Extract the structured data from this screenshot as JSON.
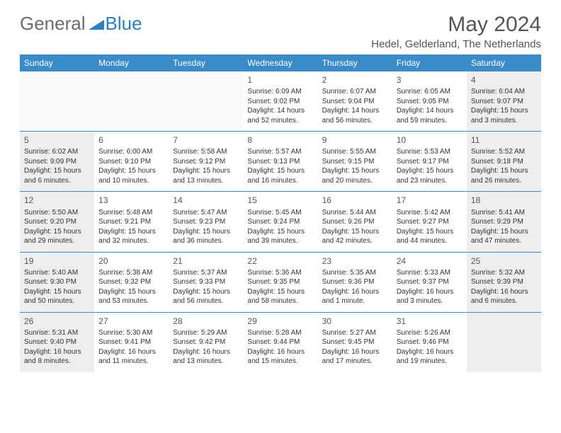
{
  "logo": {
    "general": "General",
    "blue": "Blue"
  },
  "title": "May 2024",
  "location": "Hedel, Gelderland, The Netherlands",
  "weekdays": [
    "Sunday",
    "Monday",
    "Tuesday",
    "Wednesday",
    "Thursday",
    "Friday",
    "Saturday"
  ],
  "header_bg": "#3b8bc9",
  "header_fg": "#ffffff",
  "divider_color": "#3b8bc9",
  "shaded_bg": "#eeeeee",
  "text_color": "#333333",
  "days": [
    [
      {
        "blank": true,
        "shaded": false
      },
      {
        "blank": true,
        "shaded": false
      },
      {
        "blank": true,
        "shaded": false
      },
      {
        "num": "1",
        "shaded": false,
        "sunrise": "Sunrise: 6:09 AM",
        "sunset": "Sunset: 9:02 PM",
        "daylight": "Daylight: 14 hours and 52 minutes."
      },
      {
        "num": "2",
        "shaded": false,
        "sunrise": "Sunrise: 6:07 AM",
        "sunset": "Sunset: 9:04 PM",
        "daylight": "Daylight: 14 hours and 56 minutes."
      },
      {
        "num": "3",
        "shaded": false,
        "sunrise": "Sunrise: 6:05 AM",
        "sunset": "Sunset: 9:05 PM",
        "daylight": "Daylight: 14 hours and 59 minutes."
      },
      {
        "num": "4",
        "shaded": true,
        "sunrise": "Sunrise: 6:04 AM",
        "sunset": "Sunset: 9:07 PM",
        "daylight": "Daylight: 15 hours and 3 minutes."
      }
    ],
    [
      {
        "num": "5",
        "shaded": true,
        "sunrise": "Sunrise: 6:02 AM",
        "sunset": "Sunset: 9:09 PM",
        "daylight": "Daylight: 15 hours and 6 minutes."
      },
      {
        "num": "6",
        "shaded": false,
        "sunrise": "Sunrise: 6:00 AM",
        "sunset": "Sunset: 9:10 PM",
        "daylight": "Daylight: 15 hours and 10 minutes."
      },
      {
        "num": "7",
        "shaded": false,
        "sunrise": "Sunrise: 5:58 AM",
        "sunset": "Sunset: 9:12 PM",
        "daylight": "Daylight: 15 hours and 13 minutes."
      },
      {
        "num": "8",
        "shaded": false,
        "sunrise": "Sunrise: 5:57 AM",
        "sunset": "Sunset: 9:13 PM",
        "daylight": "Daylight: 15 hours and 16 minutes."
      },
      {
        "num": "9",
        "shaded": false,
        "sunrise": "Sunrise: 5:55 AM",
        "sunset": "Sunset: 9:15 PM",
        "daylight": "Daylight: 15 hours and 20 minutes."
      },
      {
        "num": "10",
        "shaded": false,
        "sunrise": "Sunrise: 5:53 AM",
        "sunset": "Sunset: 9:17 PM",
        "daylight": "Daylight: 15 hours and 23 minutes."
      },
      {
        "num": "11",
        "shaded": true,
        "sunrise": "Sunrise: 5:52 AM",
        "sunset": "Sunset: 9:18 PM",
        "daylight": "Daylight: 15 hours and 26 minutes."
      }
    ],
    [
      {
        "num": "12",
        "shaded": true,
        "sunrise": "Sunrise: 5:50 AM",
        "sunset": "Sunset: 9:20 PM",
        "daylight": "Daylight: 15 hours and 29 minutes."
      },
      {
        "num": "13",
        "shaded": false,
        "sunrise": "Sunrise: 5:48 AM",
        "sunset": "Sunset: 9:21 PM",
        "daylight": "Daylight: 15 hours and 32 minutes."
      },
      {
        "num": "14",
        "shaded": false,
        "sunrise": "Sunrise: 5:47 AM",
        "sunset": "Sunset: 9:23 PM",
        "daylight": "Daylight: 15 hours and 36 minutes."
      },
      {
        "num": "15",
        "shaded": false,
        "sunrise": "Sunrise: 5:45 AM",
        "sunset": "Sunset: 9:24 PM",
        "daylight": "Daylight: 15 hours and 39 minutes."
      },
      {
        "num": "16",
        "shaded": false,
        "sunrise": "Sunrise: 5:44 AM",
        "sunset": "Sunset: 9:26 PM",
        "daylight": "Daylight: 15 hours and 42 minutes."
      },
      {
        "num": "17",
        "shaded": false,
        "sunrise": "Sunrise: 5:42 AM",
        "sunset": "Sunset: 9:27 PM",
        "daylight": "Daylight: 15 hours and 44 minutes."
      },
      {
        "num": "18",
        "shaded": true,
        "sunrise": "Sunrise: 5:41 AM",
        "sunset": "Sunset: 9:29 PM",
        "daylight": "Daylight: 15 hours and 47 minutes."
      }
    ],
    [
      {
        "num": "19",
        "shaded": true,
        "sunrise": "Sunrise: 5:40 AM",
        "sunset": "Sunset: 9:30 PM",
        "daylight": "Daylight: 15 hours and 50 minutes."
      },
      {
        "num": "20",
        "shaded": false,
        "sunrise": "Sunrise: 5:38 AM",
        "sunset": "Sunset: 9:32 PM",
        "daylight": "Daylight: 15 hours and 53 minutes."
      },
      {
        "num": "21",
        "shaded": false,
        "sunrise": "Sunrise: 5:37 AM",
        "sunset": "Sunset: 9:33 PM",
        "daylight": "Daylight: 15 hours and 56 minutes."
      },
      {
        "num": "22",
        "shaded": false,
        "sunrise": "Sunrise: 5:36 AM",
        "sunset": "Sunset: 9:35 PM",
        "daylight": "Daylight: 15 hours and 58 minutes."
      },
      {
        "num": "23",
        "shaded": false,
        "sunrise": "Sunrise: 5:35 AM",
        "sunset": "Sunset: 9:36 PM",
        "daylight": "Daylight: 16 hours and 1 minute."
      },
      {
        "num": "24",
        "shaded": false,
        "sunrise": "Sunrise: 5:33 AM",
        "sunset": "Sunset: 9:37 PM",
        "daylight": "Daylight: 16 hours and 3 minutes."
      },
      {
        "num": "25",
        "shaded": true,
        "sunrise": "Sunrise: 5:32 AM",
        "sunset": "Sunset: 9:39 PM",
        "daylight": "Daylight: 16 hours and 6 minutes."
      }
    ],
    [
      {
        "num": "26",
        "shaded": true,
        "sunrise": "Sunrise: 5:31 AM",
        "sunset": "Sunset: 9:40 PM",
        "daylight": "Daylight: 16 hours and 8 minutes."
      },
      {
        "num": "27",
        "shaded": false,
        "sunrise": "Sunrise: 5:30 AM",
        "sunset": "Sunset: 9:41 PM",
        "daylight": "Daylight: 16 hours and 11 minutes."
      },
      {
        "num": "28",
        "shaded": false,
        "sunrise": "Sunrise: 5:29 AM",
        "sunset": "Sunset: 9:42 PM",
        "daylight": "Daylight: 16 hours and 13 minutes."
      },
      {
        "num": "29",
        "shaded": false,
        "sunrise": "Sunrise: 5:28 AM",
        "sunset": "Sunset: 9:44 PM",
        "daylight": "Daylight: 16 hours and 15 minutes."
      },
      {
        "num": "30",
        "shaded": false,
        "sunrise": "Sunrise: 5:27 AM",
        "sunset": "Sunset: 9:45 PM",
        "daylight": "Daylight: 16 hours and 17 minutes."
      },
      {
        "num": "31",
        "shaded": false,
        "sunrise": "Sunrise: 5:26 AM",
        "sunset": "Sunset: 9:46 PM",
        "daylight": "Daylight: 16 hours and 19 minutes."
      },
      {
        "blank": true,
        "shaded": true
      }
    ]
  ]
}
